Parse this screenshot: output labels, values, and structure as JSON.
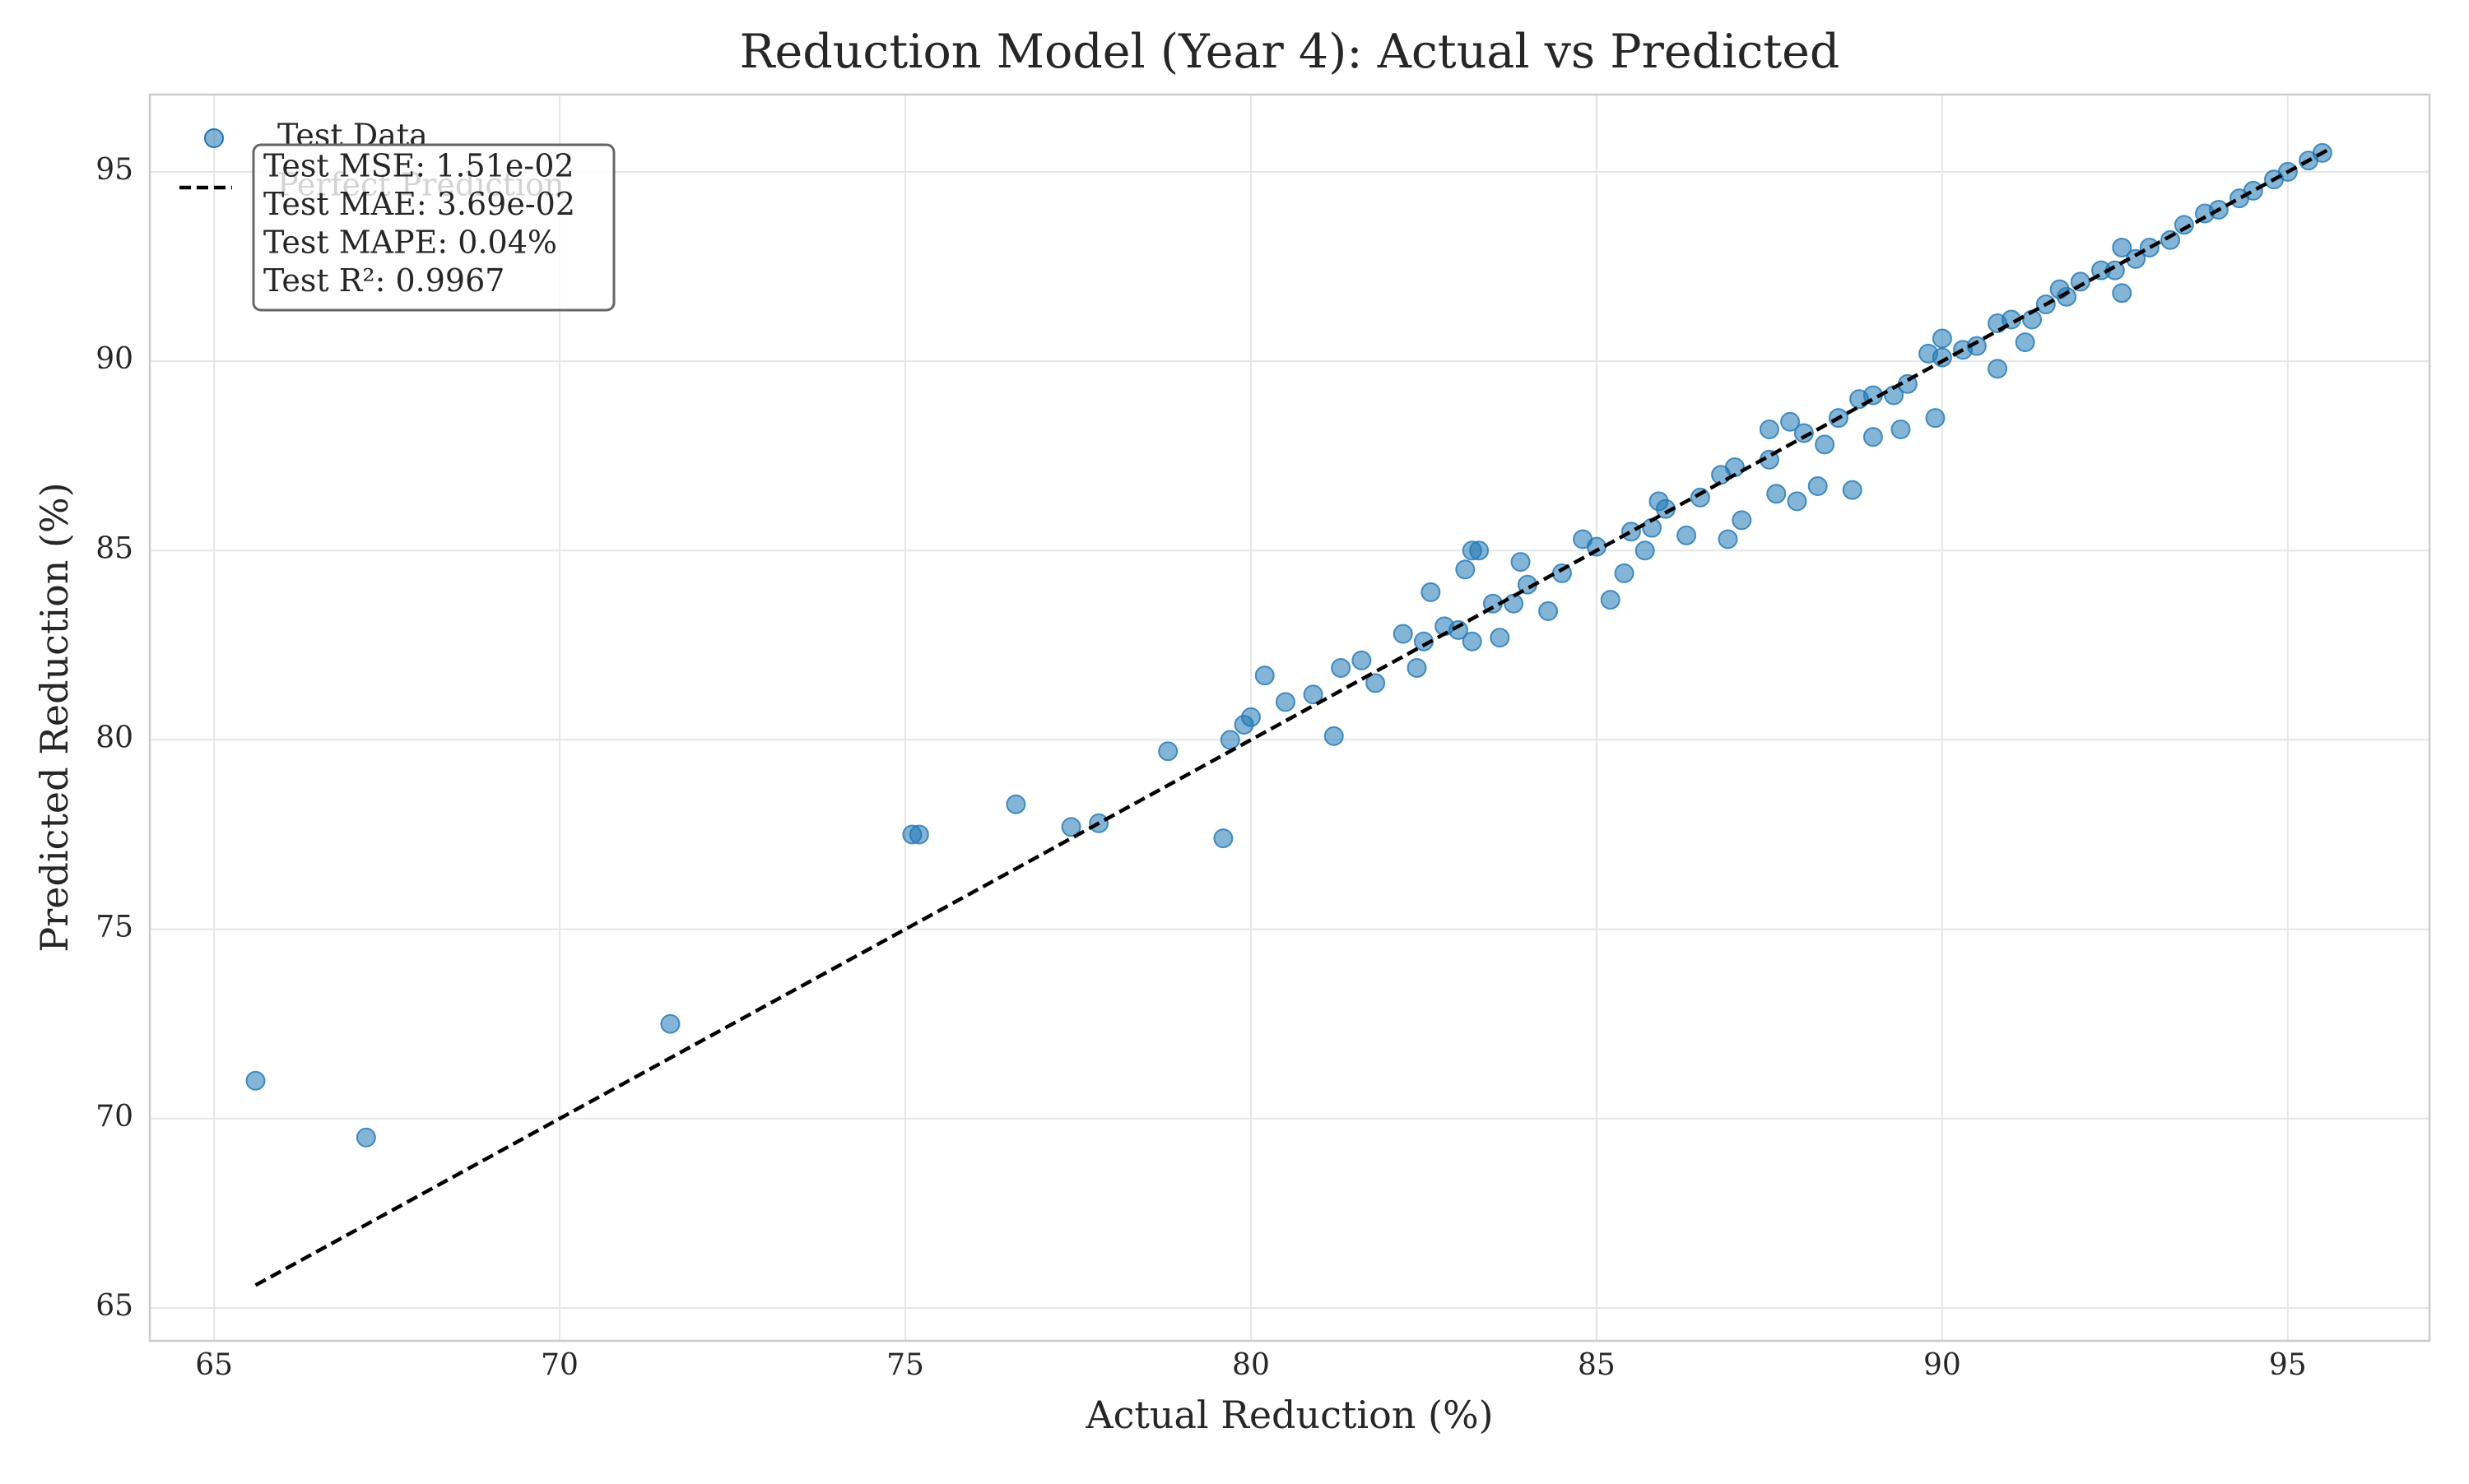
{
  "chart_data": {
    "type": "scatter",
    "title": "Reduction Model (Year 4): Actual vs Predicted",
    "x_label": "Actual Reduction (%)",
    "y_label": "Predicted Reduction (%)",
    "xlim": [
      64.07,
      97.05
    ],
    "ylim": [
      64.13,
      97.04
    ],
    "xticks": [
      65,
      70,
      75,
      80,
      85,
      90,
      95
    ],
    "yticks": [
      65,
      70,
      75,
      80,
      85,
      90,
      95
    ],
    "grid": true,
    "legend": "upper left",
    "annotation": [
      "Test MSE: 1.51e-02",
      "Test MAE: 3.69e-02",
      "Test MAPE: 0.04%",
      "Test R²: 0.9967"
    ],
    "series": [
      {
        "name": "Test Data",
        "color": "#1f77b4",
        "marker": "o",
        "x": [
          65.6,
          67.2,
          71.6,
          75.1,
          75.2,
          76.6,
          77.4,
          77.8,
          78.8,
          79.6,
          79.7,
          80.0,
          79.9,
          80.2,
          80.5,
          80.9,
          81.2,
          81.3,
          81.6,
          81.8,
          82.2,
          82.4,
          82.6,
          83.1,
          83.2,
          83.3,
          83.2,
          83.6,
          83.9,
          84.3,
          85.2,
          85.4,
          85.7,
          85.9,
          86.3,
          86.9,
          87.1,
          87.5,
          87.6,
          87.9,
          88.2,
          88.7,
          89.0,
          89.4,
          89.9,
          90.0,
          90.8,
          91.2,
          91.7,
          92.6,
          92.6,
          82.5,
          83.0,
          83.5,
          84.0,
          84.5,
          85.0,
          85.5,
          86.0,
          86.5,
          87.0,
          87.5,
          88.0,
          88.5,
          89.0,
          89.5,
          90.0,
          90.5,
          91.0,
          91.5,
          92.0,
          92.5,
          93.0,
          93.5,
          94.0,
          94.5,
          95.0,
          95.5,
          82.8,
          83.8,
          84.8,
          85.8,
          86.8,
          87.8,
          88.3,
          88.8,
          89.3,
          89.8,
          90.3,
          90.8,
          91.3,
          91.8,
          92.3,
          92.8,
          93.3,
          93.8,
          94.3,
          94.8,
          95.3
        ],
        "y": [
          71.0,
          69.5,
          72.5,
          77.5,
          77.5,
          78.3,
          77.7,
          77.8,
          79.7,
          77.4,
          80.0,
          80.6,
          80.4,
          81.7,
          81.0,
          81.2,
          80.1,
          81.9,
          82.1,
          81.5,
          82.8,
          81.9,
          83.9,
          84.5,
          85.0,
          85.0,
          82.6,
          82.7,
          84.7,
          83.4,
          83.7,
          84.4,
          85.0,
          86.3,
          85.4,
          85.3,
          85.8,
          88.2,
          86.5,
          86.3,
          86.7,
          86.6,
          88.0,
          88.2,
          88.5,
          90.6,
          89.8,
          90.5,
          91.9,
          91.8,
          93.0,
          82.6,
          82.9,
          83.6,
          84.1,
          84.4,
          85.1,
          85.5,
          86.1,
          86.4,
          87.2,
          87.4,
          88.1,
          88.5,
          89.1,
          89.4,
          90.1,
          90.4,
          91.1,
          91.5,
          92.1,
          92.4,
          93.0,
          93.6,
          94.0,
          94.5,
          95.0,
          95.5,
          83.0,
          83.6,
          85.3,
          85.6,
          87.0,
          88.4,
          87.8,
          89.0,
          89.1,
          90.2,
          90.3,
          91.0,
          91.1,
          91.7,
          92.4,
          92.7,
          93.2,
          93.9,
          94.3,
          94.8,
          95.3
        ]
      },
      {
        "name": "Perfect Prediction",
        "color": "#000000",
        "linestyle": "--",
        "x": [
          65.6,
          95.6
        ],
        "y": [
          65.6,
          95.6
        ]
      }
    ]
  }
}
